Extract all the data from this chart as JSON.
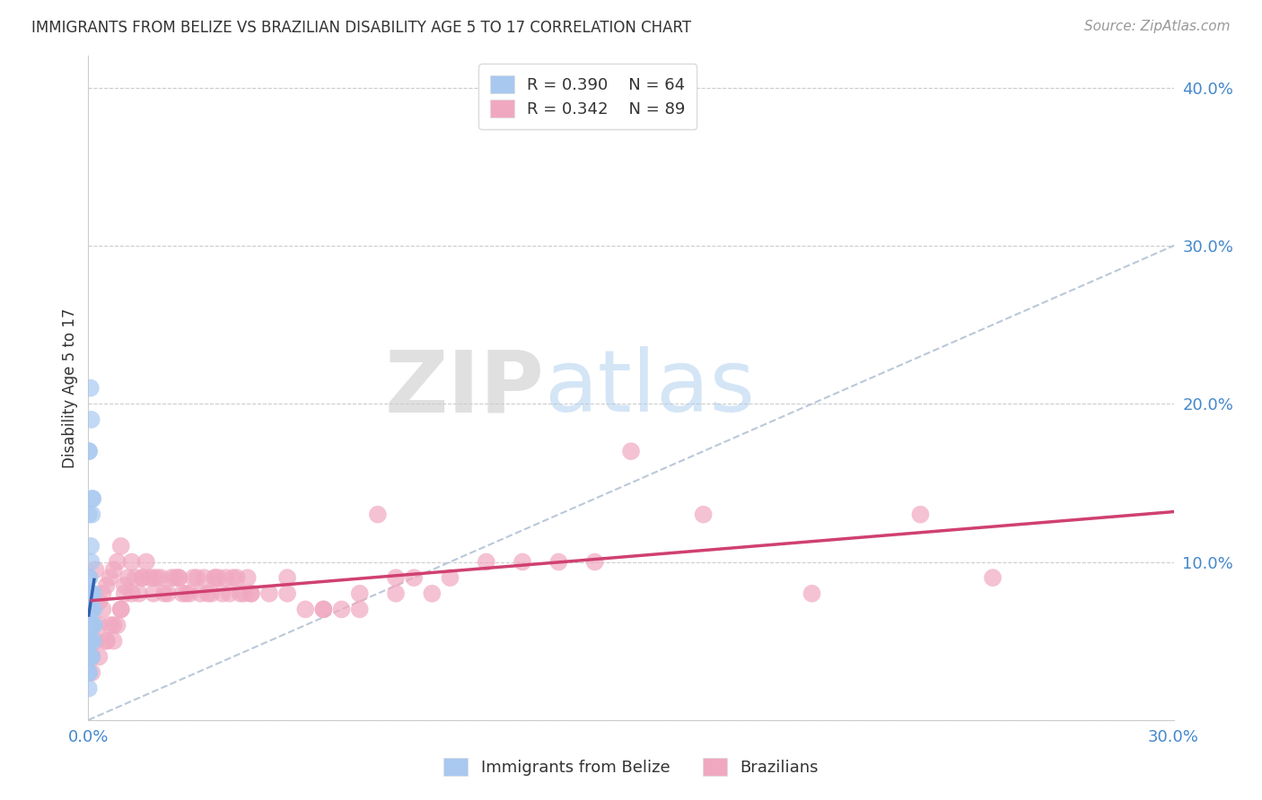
{
  "title": "IMMIGRANTS FROM BELIZE VS BRAZILIAN DISABILITY AGE 5 TO 17 CORRELATION CHART",
  "source": "Source: ZipAtlas.com",
  "ylabel": "Disability Age 5 to 17",
  "xlim": [
    0.0,
    0.3
  ],
  "ylim": [
    0.0,
    0.42
  ],
  "x_ticks": [
    0.0,
    0.05,
    0.1,
    0.15,
    0.2,
    0.25,
    0.3
  ],
  "y_ticks": [
    0.0,
    0.1,
    0.2,
    0.3,
    0.4
  ],
  "belize_R": 0.39,
  "belize_N": 64,
  "brazil_R": 0.342,
  "brazil_N": 89,
  "belize_color": "#a8c8f0",
  "brazil_color": "#f0a8c0",
  "belize_line_color": "#3060b0",
  "brazil_line_color": "#d04070",
  "diagonal_color": "#aabbd0",
  "background_color": "#ffffff",
  "legend_label_belize": "Immigrants from Belize",
  "legend_label_brazil": "Brazilians",
  "belize_scatter_x": [
    0.0002,
    0.0003,
    0.0001,
    0.0002,
    0.0001,
    0.0004,
    0.0003,
    0.0002,
    0.0005,
    0.0003,
    0.0002,
    0.0001,
    0.0003,
    0.0004,
    0.0002,
    0.0003,
    0.0002,
    0.0001,
    0.0004,
    0.0003,
    0.0006,
    0.0008,
    0.0005,
    0.0007,
    0.0009,
    0.001,
    0.0011,
    0.0012,
    0.001,
    0.0009,
    0.0008,
    0.0007,
    0.0013,
    0.0014,
    0.0001,
    0.0001,
    0.0002,
    0.0001,
    0.0003,
    0.0002,
    0.0001,
    0.0002,
    0.0003,
    0.0001,
    0.0002,
    0.0004,
    0.0003,
    0.0001,
    0.0002,
    0.0005,
    0.0006,
    0.0007,
    0.0004,
    0.0005,
    0.0003,
    0.0008,
    0.0009,
    0.0006,
    0.0007,
    0.001,
    0.0015,
    0.0016,
    0.0013,
    0.0014
  ],
  "belize_scatter_y": [
    0.08,
    0.09,
    0.17,
    0.17,
    0.13,
    0.07,
    0.06,
    0.05,
    0.08,
    0.04,
    0.05,
    0.03,
    0.04,
    0.05,
    0.06,
    0.07,
    0.03,
    0.02,
    0.06,
    0.04,
    0.21,
    0.19,
    0.07,
    0.08,
    0.07,
    0.13,
    0.14,
    0.14,
    0.07,
    0.08,
    0.1,
    0.11,
    0.06,
    0.05,
    0.07,
    0.06,
    0.07,
    0.07,
    0.07,
    0.07,
    0.08,
    0.09,
    0.05,
    0.05,
    0.04,
    0.06,
    0.05,
    0.04,
    0.03,
    0.04,
    0.07,
    0.06,
    0.05,
    0.06,
    0.04,
    0.05,
    0.06,
    0.07,
    0.05,
    0.04,
    0.07,
    0.06,
    0.06,
    0.08
  ],
  "brazil_scatter_x": [
    0.002,
    0.003,
    0.004,
    0.005,
    0.006,
    0.007,
    0.008,
    0.009,
    0.01,
    0.011,
    0.012,
    0.013,
    0.014,
    0.015,
    0.016,
    0.017,
    0.018,
    0.019,
    0.02,
    0.021,
    0.022,
    0.023,
    0.024,
    0.025,
    0.026,
    0.027,
    0.028,
    0.029,
    0.03,
    0.031,
    0.032,
    0.033,
    0.034,
    0.035,
    0.036,
    0.037,
    0.038,
    0.039,
    0.04,
    0.041,
    0.042,
    0.043,
    0.044,
    0.045,
    0.05,
    0.055,
    0.06,
    0.065,
    0.07,
    0.075,
    0.001,
    0.002,
    0.003,
    0.004,
    0.005,
    0.006,
    0.007,
    0.008,
    0.009,
    0.01,
    0.08,
    0.085,
    0.09,
    0.1,
    0.11,
    0.12,
    0.13,
    0.14,
    0.2,
    0.23,
    0.001,
    0.003,
    0.005,
    0.007,
    0.009,
    0.012,
    0.015,
    0.018,
    0.025,
    0.035,
    0.045,
    0.055,
    0.065,
    0.075,
    0.085,
    0.095,
    0.15,
    0.17,
    0.25
  ],
  "brazil_scatter_y": [
    0.095,
    0.075,
    0.08,
    0.085,
    0.09,
    0.095,
    0.1,
    0.11,
    0.085,
    0.09,
    0.1,
    0.09,
    0.08,
    0.09,
    0.1,
    0.09,
    0.08,
    0.09,
    0.09,
    0.08,
    0.08,
    0.09,
    0.09,
    0.09,
    0.08,
    0.08,
    0.08,
    0.09,
    0.09,
    0.08,
    0.09,
    0.08,
    0.08,
    0.09,
    0.09,
    0.08,
    0.09,
    0.08,
    0.09,
    0.09,
    0.08,
    0.08,
    0.09,
    0.08,
    0.08,
    0.08,
    0.07,
    0.07,
    0.07,
    0.08,
    0.04,
    0.05,
    0.06,
    0.07,
    0.05,
    0.06,
    0.05,
    0.06,
    0.07,
    0.08,
    0.13,
    0.09,
    0.09,
    0.09,
    0.1,
    0.1,
    0.1,
    0.1,
    0.08,
    0.13,
    0.03,
    0.04,
    0.05,
    0.06,
    0.07,
    0.08,
    0.09,
    0.09,
    0.09,
    0.09,
    0.08,
    0.09,
    0.07,
    0.07,
    0.08,
    0.08,
    0.17,
    0.13,
    0.09
  ]
}
